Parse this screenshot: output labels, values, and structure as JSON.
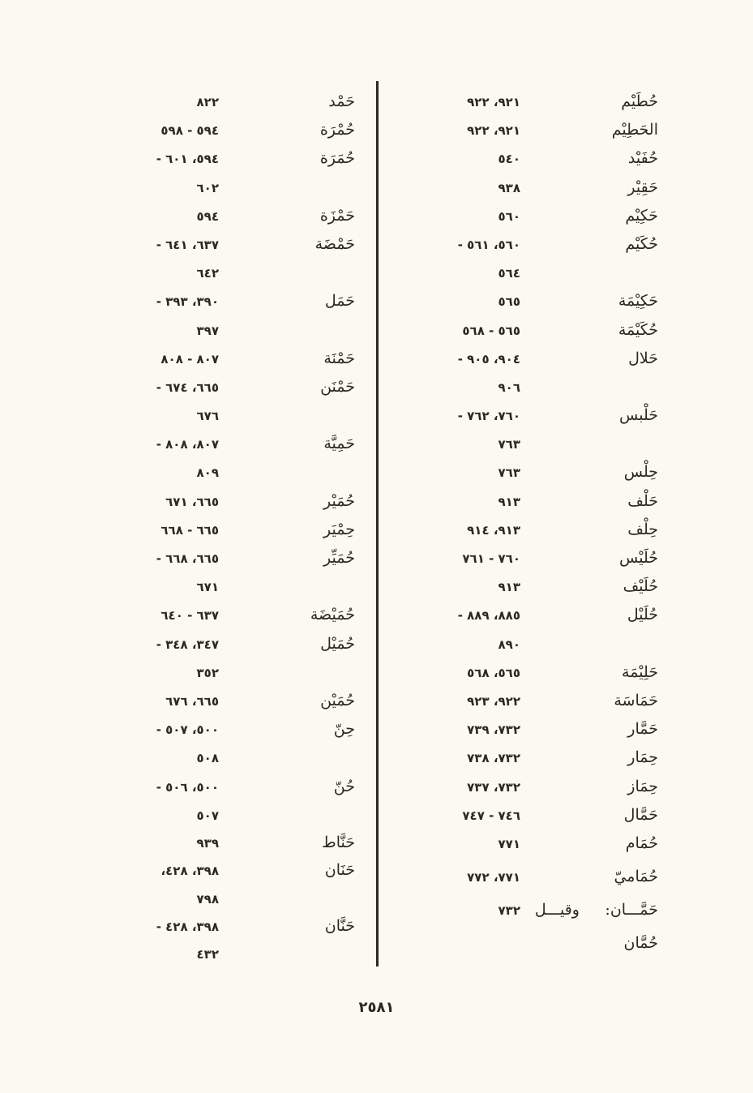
{
  "page_number": "٢٥٨١",
  "right_column": [
    {
      "word": "حُطَيْم",
      "pages": "٩٢١، ٩٢٢"
    },
    {
      "word": "الحَطِيْم",
      "pages": "٩٢١، ٩٢٢"
    },
    {
      "word": "حُفَيْد",
      "pages": "٥٤٠"
    },
    {
      "word": "حَقِيْر",
      "pages": "٩٣٨"
    },
    {
      "word": "حَكِيْم",
      "pages": "٥٦٠"
    },
    {
      "word": "حُكَيْم",
      "pages": "٥٦٠، ٥٦١ -"
    },
    {
      "word": "",
      "pages": "٥٦٤"
    },
    {
      "word": "حَكِيْمَة",
      "pages": "٥٦٥"
    },
    {
      "word": "حُكَيْمَة",
      "pages": "٥٦٥ - ٥٦٨"
    },
    {
      "word": "حَلال",
      "pages": "٩٠٤، ٩٠٥ -"
    },
    {
      "word": "",
      "pages": "٩٠٦"
    },
    {
      "word": "حَلْبس",
      "pages": "٧٦٠، ٧٦٢ -"
    },
    {
      "word": "",
      "pages": "٧٦٣"
    },
    {
      "word": "حِلْس",
      "pages": "٧٦٣"
    },
    {
      "word": "حَلْف",
      "pages": "٩١٣"
    },
    {
      "word": "حِلْف",
      "pages": "٩١٣، ٩١٤"
    },
    {
      "word": "حُلَيْس",
      "pages": "٧٦٠ - ٧٦١"
    },
    {
      "word": "حُلَيْف",
      "pages": "٩١٣"
    },
    {
      "word": "حُلَيْل",
      "pages": "٨٨٥، ٨٨٩ -"
    },
    {
      "word": "",
      "pages": "٨٩٠"
    },
    {
      "word": "حَلِيْمَة",
      "pages": "٥٦٥، ٥٦٨"
    },
    {
      "word": "حَمَاسَة",
      "pages": "٩٢٢، ٩٢٣"
    },
    {
      "word": "حَمَّار",
      "pages": "٧٣٢، ٧٣٩"
    },
    {
      "word": "حِمَار",
      "pages": "٧٣٢، ٧٣٨"
    },
    {
      "word": "حِمَاز",
      "pages": "٧٣٢، ٧٣٧"
    },
    {
      "word": "حَمَّال",
      "pages": "٧٤٦ - ٧٤٧"
    },
    {
      "word": "حُمَام",
      "pages": "٧٧١"
    },
    {
      "word": "حُمَاميّ",
      "pages": "٧٧١، ٧٧٢"
    },
    {
      "word": "حَمَّـــان:",
      "note": "وقيـــل",
      "pages": "٧٣٢"
    },
    {
      "word": "حُمَّان",
      "pages": ""
    }
  ],
  "left_column": [
    {
      "word": "حَمْد",
      "pages": "٨٢٢"
    },
    {
      "word": "حُمْرَة",
      "pages": "٥٩٤ - ٥٩٨"
    },
    {
      "word": "حُمَرَة",
      "pages": "٥٩٤، ٦٠١ -"
    },
    {
      "word": "",
      "pages": "٦٠٢"
    },
    {
      "word": "حَمْزَة",
      "pages": "٥٩٤"
    },
    {
      "word": "حَمْضَة",
      "pages": "٦٣٧، ٦٤١ -"
    },
    {
      "word": "",
      "pages": "٦٤٢"
    },
    {
      "word": "حَمَل",
      "pages": "٣٩٠، ٣٩٣ -"
    },
    {
      "word": "",
      "pages": "٣٩٧"
    },
    {
      "word": "حَمْنَة",
      "pages": "٨٠٧ - ٨٠٨"
    },
    {
      "word": "حَمْنَن",
      "pages": "٦٦٥، ٦٧٤ -"
    },
    {
      "word": "",
      "pages": "٦٧٦"
    },
    {
      "word": "حَمِيَّة",
      "pages": "٨٠٧، ٨٠٨ -"
    },
    {
      "word": "",
      "pages": "٨٠٩"
    },
    {
      "word": "حُمَيْر",
      "pages": "٦٦٥، ٦٧١"
    },
    {
      "word": "حِمْيَر",
      "pages": "٦٦٥ - ٦٦٨"
    },
    {
      "word": "حُمَيِّر",
      "pages": "٦٦٥، ٦٦٨ -"
    },
    {
      "word": "",
      "pages": "٦٧١"
    },
    {
      "word": "حُمَيْضَة",
      "pages": "٦٣٧ - ٦٤٠"
    },
    {
      "word": "حُمَيْل",
      "pages": "٣٤٧، ٣٤٨ -"
    },
    {
      "word": "",
      "pages": "٣٥٢"
    },
    {
      "word": "حُمَيْن",
      "pages": "٦٦٥، ٦٧٦"
    },
    {
      "word": "حِنّ",
      "pages": "٥٠٠، ٥٠٧ -"
    },
    {
      "word": "",
      "pages": "٥٠٨"
    },
    {
      "word": "حُنّ",
      "pages": "٥٠٠، ٥٠٦ -"
    },
    {
      "word": "",
      "pages": "٥٠٧"
    },
    {
      "word": "حَنَّاط",
      "pages": "٩٣٩"
    },
    {
      "word": "حَنَان",
      "pages": "٣٩٨، ٤٢٨،"
    },
    {
      "word": "",
      "pages": "٧٩٨"
    },
    {
      "word": "حَنَّان",
      "pages": "٣٩٨، ٤٢٨ -"
    },
    {
      "word": "",
      "pages": "٤٣٢"
    }
  ]
}
